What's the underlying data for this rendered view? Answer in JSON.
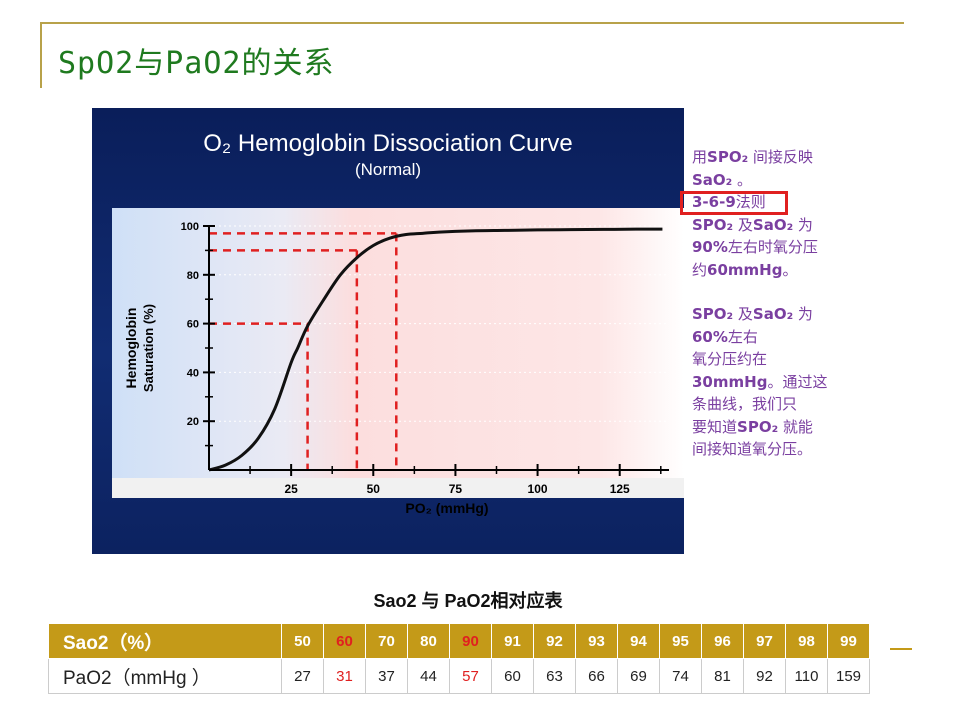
{
  "slide": {
    "title": "SpO2与PaO2的关系",
    "colors": {
      "accent": "#b8a24a",
      "title": "#1f7a1f",
      "note": "#7a3fa0",
      "highlight": "#e02020",
      "table_header": "#c49a18"
    }
  },
  "chart_data": {
    "type": "line",
    "title": "O₂ Hemoglobin Dissociation Curve",
    "subtitle": "(Normal)",
    "xlabel": "PO₂ (mmHg)",
    "ylabel": "Hemoglobin Saturation (%)",
    "xlim": [
      0,
      140
    ],
    "ylim": [
      0,
      100
    ],
    "xticks": [
      25,
      50,
      75,
      100,
      125
    ],
    "yticks": [
      20,
      40,
      60,
      80,
      100
    ],
    "series": [
      {
        "x": [
          0,
          5,
          10,
          15,
          20,
          25,
          27,
          30,
          35,
          40,
          45,
          50,
          55,
          60,
          65,
          70,
          80,
          90,
          100,
          110,
          120,
          130,
          138
        ],
        "y": [
          0,
          2,
          6,
          13,
          25,
          44,
          50,
          59,
          70,
          80,
          87,
          92,
          95,
          96.5,
          97,
          97.5,
          98,
          98.2,
          98.4,
          98.5,
          98.6,
          98.7,
          98.7
        ]
      }
    ],
    "reference_lines": [
      {
        "x": 30,
        "y": 60
      },
      {
        "x": 45,
        "y": 90
      },
      {
        "x": 57,
        "y": 97
      }
    ],
    "colors": {
      "curve": "#111111",
      "reference": "#e02020",
      "low_region": "#cfe0f7",
      "high_region": "#fcdede"
    }
  },
  "note": {
    "lines": [
      [
        "用",
        "**SPO₂**",
        " 间接反映"
      ],
      [
        "**SaO₂**",
        " 。"
      ],
      [
        "**3-6-9**",
        "法则"
      ],
      [
        "**SPO₂**",
        " 及",
        "**SaO₂**",
        " 为"
      ],
      [
        "**90%**",
        "左右时氧分压"
      ],
      [
        "约",
        "**60mmHg**",
        "。"
      ],
      [],
      [
        "**SPO₂**",
        " 及",
        "**SaO₂**",
        " 为"
      ],
      [
        "**60%**",
        "左右"
      ],
      [
        "氧分压约在"
      ],
      [
        "**30mmHg**",
        "。通过这"
      ],
      [
        "条曲线，我们只"
      ],
      [
        "要知道",
        "**SPO₂**",
        " 就能"
      ],
      [
        "间接知道氧分压。"
      ]
    ]
  },
  "table": {
    "title": "Sao2 与  PaO2相对应表",
    "rows": [
      {
        "label": "Sao2（%）",
        "values": [
          "50",
          "60",
          "70",
          "80",
          "90",
          "91",
          "92",
          "93",
          "94",
          "95",
          "96",
          "97",
          "98",
          "99"
        ]
      },
      {
        "label": "PaO2（mmHg  ）",
        "values": [
          "27",
          "31",
          "37",
          "44",
          "57",
          "60",
          "63",
          "66",
          "69",
          "74",
          "81",
          "92",
          "110",
          "159"
        ]
      }
    ],
    "highlight_columns": [
      1,
      4
    ]
  }
}
